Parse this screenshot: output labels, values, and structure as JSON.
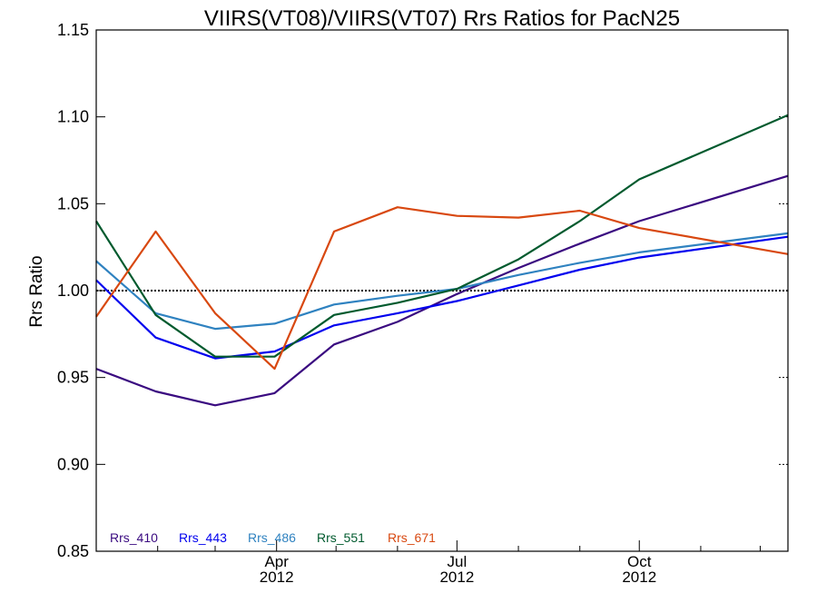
{
  "chart_data": {
    "type": "line",
    "title": "VIIRS(VT08)/VIIRS(VT07)  Rrs Ratios for PacN25",
    "xlabel": "",
    "ylabel": "Rrs Ratio",
    "xlim": [
      "2012-01-01",
      "2012-12-15"
    ],
    "ylim": [
      0.85,
      1.15
    ],
    "yticks": [
      "0.85",
      "0.90",
      "0.95",
      "1.00",
      "1.05",
      "1.10",
      "1.15"
    ],
    "xticks": [
      {
        "date": "2012-04-01",
        "label": "Apr",
        "year": "2012"
      },
      {
        "date": "2012-07-01",
        "label": "Jul",
        "year": "2012"
      },
      {
        "date": "2012-10-01",
        "label": "Oct",
        "year": "2012"
      }
    ],
    "minor_xticks": [
      "2012-02-01",
      "2012-03-01",
      "2012-05-01",
      "2012-06-01",
      "2012-08-01",
      "2012-09-01",
      "2012-11-01",
      "2012-12-01"
    ],
    "reference_line": 1.0,
    "legend_position": "bottom-left",
    "series": [
      {
        "name": "Rrs_410",
        "color": "#3a0a80",
        "points": [
          {
            "x": "2012-01-01",
            "y": 0.955
          },
          {
            "x": "2012-01-31",
            "y": 0.942
          },
          {
            "x": "2012-03-01",
            "y": 0.934
          },
          {
            "x": "2012-03-31",
            "y": 0.941
          },
          {
            "x": "2012-04-30",
            "y": 0.969
          },
          {
            "x": "2012-06-01",
            "y": 0.982
          },
          {
            "x": "2012-07-01",
            "y": 0.998
          },
          {
            "x": "2012-08-01",
            "y": 1.013
          },
          {
            "x": "2012-09-01",
            "y": 1.027
          },
          {
            "x": "2012-10-01",
            "y": 1.04
          },
          {
            "x": "2012-12-15",
            "y": 1.066
          }
        ]
      },
      {
        "name": "Rrs_443",
        "color": "#0000ee",
        "points": [
          {
            "x": "2012-01-01",
            "y": 1.006
          },
          {
            "x": "2012-01-31",
            "y": 0.973
          },
          {
            "x": "2012-03-01",
            "y": 0.961
          },
          {
            "x": "2012-03-31",
            "y": 0.965
          },
          {
            "x": "2012-04-30",
            "y": 0.98
          },
          {
            "x": "2012-06-01",
            "y": 0.987
          },
          {
            "x": "2012-07-01",
            "y": 0.994
          },
          {
            "x": "2012-08-01",
            "y": 1.003
          },
          {
            "x": "2012-09-01",
            "y": 1.012
          },
          {
            "x": "2012-10-01",
            "y": 1.019
          },
          {
            "x": "2012-12-15",
            "y": 1.031
          }
        ]
      },
      {
        "name": "Rrs_486",
        "color": "#2f82c0",
        "points": [
          {
            "x": "2012-01-01",
            "y": 1.017
          },
          {
            "x": "2012-01-31",
            "y": 0.987
          },
          {
            "x": "2012-03-01",
            "y": 0.978
          },
          {
            "x": "2012-03-31",
            "y": 0.981
          },
          {
            "x": "2012-04-30",
            "y": 0.992
          },
          {
            "x": "2012-06-01",
            "y": 0.997
          },
          {
            "x": "2012-07-01",
            "y": 1.001
          },
          {
            "x": "2012-08-01",
            "y": 1.009
          },
          {
            "x": "2012-09-01",
            "y": 1.016
          },
          {
            "x": "2012-10-01",
            "y": 1.022
          },
          {
            "x": "2012-12-15",
            "y": 1.033
          }
        ]
      },
      {
        "name": "Rrs_551",
        "color": "#005a2e",
        "points": [
          {
            "x": "2012-01-01",
            "y": 1.04
          },
          {
            "x": "2012-01-31",
            "y": 0.986
          },
          {
            "x": "2012-03-01",
            "y": 0.962
          },
          {
            "x": "2012-03-31",
            "y": 0.962
          },
          {
            "x": "2012-04-30",
            "y": 0.986
          },
          {
            "x": "2012-06-01",
            "y": 0.993
          },
          {
            "x": "2012-07-01",
            "y": 1.001
          },
          {
            "x": "2012-08-01",
            "y": 1.018
          },
          {
            "x": "2012-09-01",
            "y": 1.04
          },
          {
            "x": "2012-10-01",
            "y": 1.064
          },
          {
            "x": "2012-12-15",
            "y": 1.101
          }
        ]
      },
      {
        "name": "Rrs_671",
        "color": "#d84810",
        "points": [
          {
            "x": "2012-01-01",
            "y": 0.985
          },
          {
            "x": "2012-01-31",
            "y": 1.034
          },
          {
            "x": "2012-03-01",
            "y": 0.987
          },
          {
            "x": "2012-03-31",
            "y": 0.955
          },
          {
            "x": "2012-04-30",
            "y": 1.034
          },
          {
            "x": "2012-06-01",
            "y": 1.048
          },
          {
            "x": "2012-07-01",
            "y": 1.043
          },
          {
            "x": "2012-08-01",
            "y": 1.042
          },
          {
            "x": "2012-09-01",
            "y": 1.046
          },
          {
            "x": "2012-10-01",
            "y": 1.036
          },
          {
            "x": "2012-12-15",
            "y": 1.021
          }
        ]
      }
    ]
  }
}
